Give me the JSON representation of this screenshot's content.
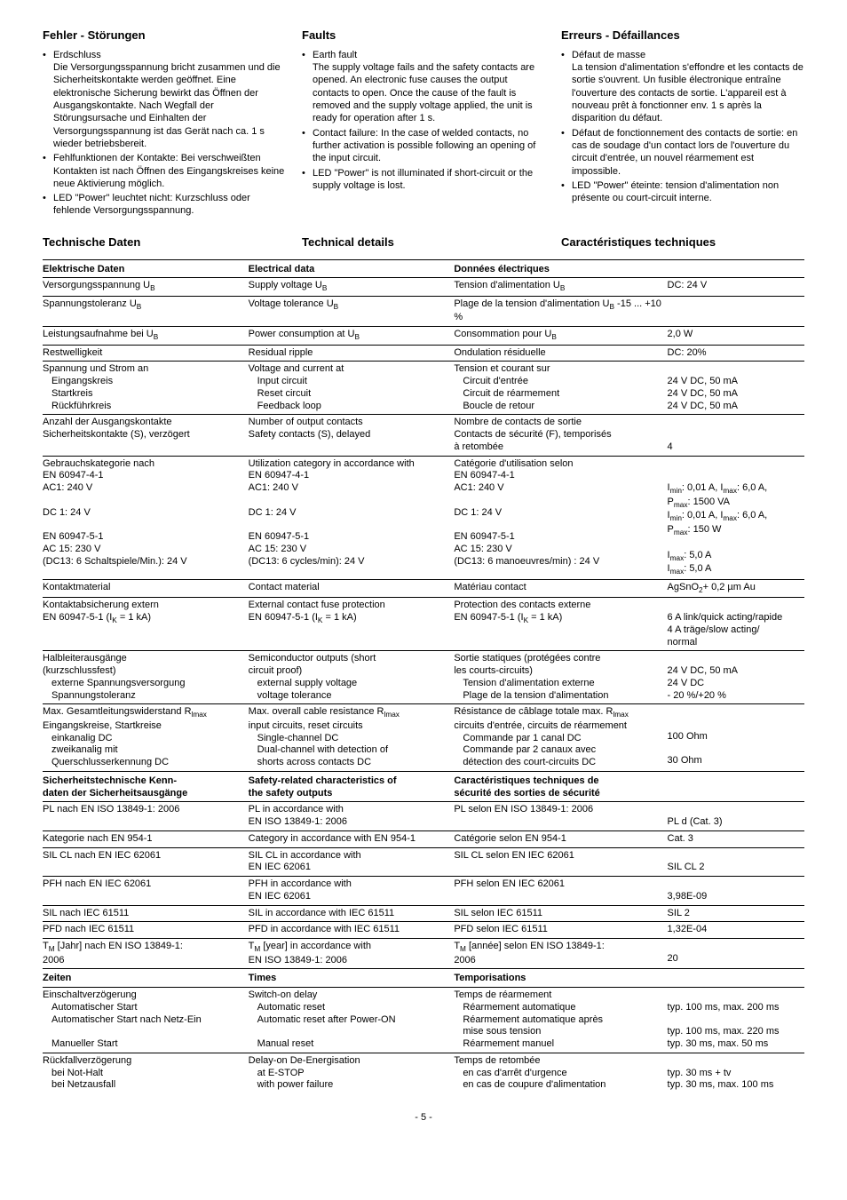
{
  "faults": {
    "de": {
      "title": "Fehler - Störungen",
      "items": [
        {
          "main": "Erdschluss",
          "body": "Die Versorgungsspannung bricht zusammen und die Sicherheitskontakte werden geöffnet. Eine elektronische Sicherung bewirkt das Öffnen der Ausgangskontakte. Nach Wegfall der Störungsursache und Einhalten der Versorgungsspannung ist das Gerät nach ca. 1 s wieder betriebsbereit."
        },
        {
          "main": "Fehlfunktionen der Kontakte: Bei verschweißten Kontakten ist nach Öffnen des Eingangskreises keine neue Aktivierung möglich."
        },
        {
          "main": "LED \"Power\" leuchtet nicht: Kurzschluss oder fehlende Versorgungsspannung."
        }
      ]
    },
    "en": {
      "title": "Faults",
      "items": [
        {
          "main": "Earth fault",
          "body": "The supply voltage fails and the safety contacts are opened. An electronic fuse causes the output contacts to open. Once the cause of the fault is removed and the supply voltage applied, the unit is ready for operation after 1 s."
        },
        {
          "main": "Contact failure: In the case of welded contacts, no further activation is possible following an opening of the input circuit."
        },
        {
          "main": "LED \"Power\" is not illuminated if short-circuit or the supply voltage is lost."
        }
      ]
    },
    "fr": {
      "title": "Erreurs - Défaillances",
      "items": [
        {
          "main": "Défaut de masse",
          "body": "La tension d'alimentation s'effondre et les contacts de sortie s'ouvrent. Un fusible électronique entraîne l'ouverture des contacts de sortie. L'appareil est à nouveau prêt à fonctionner env. 1 s après la disparition du défaut."
        },
        {
          "main": "Défaut de fonctionnement des contacts de sortie: en cas de soudage d'un contact lors de l'ouverture du circuit d'entrée, un nouvel réarmement est impossible."
        },
        {
          "main": "LED \"Power\" éteinte: tension d'alimentation non présente ou court-circuit interne."
        }
      ]
    }
  },
  "tech_heads": {
    "de": "Technische Daten",
    "en": "Technical details",
    "fr": "Caractéristiques techniques"
  },
  "rows": [
    {
      "type": "header",
      "de": "Elektrische Daten",
      "en": "Electrical data",
      "fr": "Données électriques",
      "val": ""
    },
    {
      "de": "Versorgungsspannung U<sub>B</sub>",
      "en": "Supply voltage U<sub>B</sub>",
      "fr": "Tension d'alimentation U<sub>B</sub>",
      "val": "DC: 24 V"
    },
    {
      "de": "Spannungstoleranz U<sub>B</sub>",
      "en": "Voltage tolerance U<sub>B</sub>",
      "fr": "Plage de la tension d'alimentation U<sub>B</sub> -15 ... +10 %",
      "val": ""
    },
    {
      "de": "Leistungsaufnahme bei U<sub>B</sub>",
      "en": "Power consumption at U<sub>B</sub>",
      "fr": "Consommation pour U<sub>B</sub>",
      "val": "2,0 W"
    },
    {
      "de": "Restwelligkeit",
      "en": "Residual ripple",
      "fr": "Ondulation résiduelle",
      "val": "DC: 20%"
    },
    {
      "de": "Spannung und Strom an<br><span class='indent'>Eingangskreis</span><br><span class='indent'>Startkreis</span><br><span class='indent'>Rückführkreis</span>",
      "en": "Voltage and current at<br><span class='indent'>Input circuit</span><br><span class='indent'>Reset circuit</span><br><span class='indent'>Feedback loop</span>",
      "fr": "Tension et courant sur<br><span class='indent'>Circuit d'entrée</span><br><span class='indent'>Circuit de réarmement</span><br><span class='indent'>Boucle de retour</span>",
      "val": "<br>24 V DC, 50 mA<br>24 V DC, 50 mA<br>24 V DC, 50 mA"
    },
    {
      "de": "Anzahl der Ausgangskontakte<br>Sicherheitskontakte (S), verzögert",
      "en": "Number of output contacts<br>Safety contacts (S), delayed",
      "fr": "Nombre de contacts de sortie<br>Contacts de sécurité (F), temporisés<br>à retombée",
      "val": "<br><br>4"
    },
    {
      "de": "Gebrauchskategorie nach<br>EN 60947-4-1<br>AC1: 240 V<br><br>DC 1: 24 V<br><br>EN 60947-5-1<br>AC 15: 230 V<br>(DC13: 6 Schaltspiele/Min.): 24 V",
      "en": "Utilization category in accordance with<br>EN 60947-4-1<br>AC1: 240 V<br><br>DC 1: 24 V<br><br>EN 60947-5-1<br>AC 15: 230 V<br>(DC13: 6 cycles/min): 24 V",
      "fr": "Catégorie d'utilisation selon<br>EN 60947-4-1<br>AC1: 240 V<br><br>DC 1: 24 V<br><br>EN 60947-5-1<br>AC 15: 230 V<br>(DC13: 6 manoeuvres/min) : 24 V",
      "val": "<br><br>I<sub>min</sub>: 0,01 A, I<sub>max</sub>: 6,0 A,<br>P<sub>max</sub>: 1500 VA<br>I<sub>min</sub>: 0,01 A, I<sub>max</sub>: 6,0 A,<br>P<sub>max</sub>: 150 W<br><br>I<sub>max</sub>: 5,0 A<br>I<sub>max</sub>: 5,0 A"
    },
    {
      "de": "Kontaktmaterial",
      "en": "Contact material",
      "fr": "Matériau contact",
      "val": "AgSnO<sub>2</sub>+ 0,2 µm Au"
    },
    {
      "de": "Kontaktabsicherung extern<br>EN 60947-5-1 (I<sub>K</sub> = 1 kA)",
      "en": "External contact fuse protection<br>EN 60947-5-1 (I<sub>K</sub> = 1 kA)",
      "fr": "Protection des contacts externe<br>EN 60947-5-1 (I<sub>K</sub> = 1 kA)",
      "val": "<br>6 A link/quick acting/rapide<br>4 A träge/slow acting/<br>normal"
    },
    {
      "de": "Halbleiterausgänge<br>(kurzschlussfest)<br><span class='indent'>externe Spannungsversorgung</span><br><span class='indent'>Spannungstoleranz</span>",
      "en": "Semiconductor outputs (short<br>circuit proof)<br><span class='indent'>external supply voltage</span><br><span class='indent'>voltage tolerance</span>",
      "fr": "Sortie statiques (protégées contre<br>les courts-circuits)<br><span class='indent'>Tension d'alimentation externe</span><br><span class='indent'>Plage de la tension d'alimentation</span>",
      "val": "<br>24 V DC, 50 mA<br>24 V DC<br>- 20 %/+20 %"
    },
    {
      "de": "Max. Gesamtleitungswiderstand R<sub>lmax</sub><br>Eingangskreise, Startkreise<br><span class='indent'>einkanalig DC</span><br><span class='indent'>zweikanalig mit</span><br><span class='indent'>Querschlusserkennung DC</span>",
      "en": "Max. overall cable resistance R<sub>lmax</sub><br>input circuits, reset circuits<br><span class='indent'>Single-channel DC</span><br><span class='indent'>Dual-channel with detection of</span><br><span class='indent'>shorts across contacts DC</span>",
      "fr": "Résistance de câblage totale max. R<sub>lmax</sub><br>circuits d'entrée, circuits de réarmement<br><span class='indent'>Commande par 1 canal DC</span><br><span class='indent'>Commande par 2 canaux avec</span><br><span class='indent'>détection des court-circuits DC</span>",
      "val": "<br><br>100 Ohm<br><br>30 Ohm"
    },
    {
      "type": "header",
      "de": "Sicherheitstechnische Kenn-<br>daten der Sicherheitsausgänge",
      "en": "Safety-related characteristics of<br>the safety outputs",
      "fr": "Caractéristiques techniques de<br>sécurité des sorties de sécurité",
      "val": ""
    },
    {
      "de": "PL nach EN ISO 13849-1: 2006",
      "en": "PL in accordance with<br>EN ISO 13849-1: 2006",
      "fr": "PL selon EN ISO 13849-1: 2006",
      "val": "<br>PL d (Cat. 3)"
    },
    {
      "de": "Kategorie nach EN 954-1",
      "en": "Category in accordance with EN 954-1",
      "fr": "Catégorie selon EN 954-1",
      "val": "Cat. 3"
    },
    {
      "de": "SIL CL nach EN IEC 62061",
      "en": "SIL CL in accordance with<br>EN IEC 62061",
      "fr": "SIL CL selon EN IEC 62061",
      "val": "<br>SIL CL 2"
    },
    {
      "de": "PFH nach EN IEC 62061",
      "en": "PFH in accordance with<br>EN IEC 62061",
      "fr": "PFH selon EN IEC 62061",
      "val": "<br>3,98E-09"
    },
    {
      "de": "SIL nach IEC 61511",
      "en": "SIL in accordance with IEC 61511",
      "fr": "SIL selon IEC 61511",
      "val": "SIL 2"
    },
    {
      "de": "PFD nach IEC 61511",
      "en": "PFD in accordance with IEC 61511",
      "fr": "PFD selon IEC 61511",
      "val": "1,32E-04"
    },
    {
      "de": "T<sub>M</sub> [Jahr] nach EN ISO 13849-1:<br>2006",
      "en": "T<sub>M</sub> [year] in accordance with<br>EN ISO 13849-1: 2006",
      "fr": "T<sub>M</sub> [année] selon EN ISO 13849-1:<br>2006",
      "val": "<br>20"
    },
    {
      "type": "header",
      "de": "Zeiten",
      "en": "Times",
      "fr": "Temporisations",
      "val": ""
    },
    {
      "de": "Einschaltverzögerung<br><span class='indent'>Automatischer Start</span><br><span class='indent'>Automatischer Start nach Netz-Ein</span><br><br><span class='indent'>Manueller Start</span>",
      "en": "Switch-on delay<br><span class='indent'>Automatic reset</span><br><span class='indent'>Automatic reset after Power-ON</span><br><br><span class='indent'>Manual reset</span>",
      "fr": "Temps de réarmement<br><span class='indent'>Réarmement automatique</span><br><span class='indent'>Réarmement automatique après</span><br><span class='indent'>mise sous tension</span><br><span class='indent'>Réarmement manuel</span>",
      "val": "<br>typ. 100 ms, max. 200 ms<br><br>typ. 100 ms, max. 220 ms<br>typ. 30 ms, max. 50 ms"
    },
    {
      "de": "Rückfallverzögerung<br><span class='indent'>bei Not-Halt</span><br><span class='indent'>bei Netzausfall</span>",
      "en": "Delay-on De-Energisation<br><span class='indent'>at E-STOP</span><br><span class='indent'>with power failure</span>",
      "fr": "Temps de retombée<br><span class='indent'>en cas d'arrêt d'urgence</span><br><span class='indent'>en cas de coupure d'alimentation</span>",
      "val": "<br>typ. 30 ms + tv<br>typ. 30 ms, max. 100 ms"
    }
  ],
  "pagenum": "- 5 -"
}
